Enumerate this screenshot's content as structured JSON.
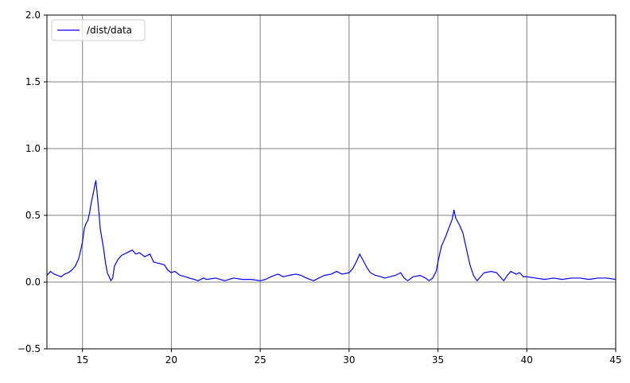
{
  "chart_data": {
    "type": "line",
    "title": "",
    "xlabel": "",
    "ylabel": "",
    "xlim": [
      13,
      45
    ],
    "ylim": [
      -0.5,
      2.0
    ],
    "xticks": [
      15,
      20,
      25,
      30,
      35,
      40,
      45
    ],
    "yticks": [
      -0.5,
      0.0,
      0.5,
      1.0,
      1.5,
      2.0
    ],
    "ytick_labels": [
      "−0.5",
      "0.0",
      "0.5",
      "1.0",
      "1.5",
      "2.0"
    ],
    "grid": true,
    "legend_position": "top-left",
    "line_color": "#0000ff",
    "grid_color": "#808080",
    "series": [
      {
        "name": "/dist/data",
        "points": [
          [
            13.0,
            0.05
          ],
          [
            13.2,
            0.08
          ],
          [
            13.4,
            0.06
          ],
          [
            13.6,
            0.05
          ],
          [
            13.8,
            0.04
          ],
          [
            14.0,
            0.06
          ],
          [
            14.2,
            0.07
          ],
          [
            14.4,
            0.09
          ],
          [
            14.6,
            0.12
          ],
          [
            14.8,
            0.18
          ],
          [
            15.0,
            0.3
          ],
          [
            15.1,
            0.4
          ],
          [
            15.2,
            0.44
          ],
          [
            15.3,
            0.46
          ],
          [
            15.4,
            0.52
          ],
          [
            15.5,
            0.6
          ],
          [
            15.6,
            0.66
          ],
          [
            15.7,
            0.73
          ],
          [
            15.75,
            0.76
          ],
          [
            15.8,
            0.7
          ],
          [
            15.9,
            0.56
          ],
          [
            16.0,
            0.4
          ],
          [
            16.1,
            0.32
          ],
          [
            16.2,
            0.24
          ],
          [
            16.3,
            0.14
          ],
          [
            16.4,
            0.07
          ],
          [
            16.5,
            0.04
          ],
          [
            16.6,
            0.01
          ],
          [
            16.7,
            0.03
          ],
          [
            16.8,
            0.12
          ],
          [
            17.0,
            0.17
          ],
          [
            17.2,
            0.2
          ],
          [
            17.5,
            0.22
          ],
          [
            17.8,
            0.24
          ],
          [
            18.0,
            0.21
          ],
          [
            18.2,
            0.22
          ],
          [
            18.5,
            0.19
          ],
          [
            18.8,
            0.21
          ],
          [
            19.0,
            0.15
          ],
          [
            19.3,
            0.14
          ],
          [
            19.6,
            0.13
          ],
          [
            19.8,
            0.09
          ],
          [
            20.0,
            0.07
          ],
          [
            20.2,
            0.08
          ],
          [
            20.5,
            0.05
          ],
          [
            20.8,
            0.04
          ],
          [
            21.0,
            0.03
          ],
          [
            21.3,
            0.02
          ],
          [
            21.5,
            0.01
          ],
          [
            21.8,
            0.03
          ],
          [
            22.0,
            0.02
          ],
          [
            22.5,
            0.03
          ],
          [
            23.0,
            0.01
          ],
          [
            23.5,
            0.03
          ],
          [
            24.0,
            0.02
          ],
          [
            24.5,
            0.02
          ],
          [
            25.0,
            0.01
          ],
          [
            25.3,
            0.02
          ],
          [
            25.6,
            0.04
          ],
          [
            26.0,
            0.06
          ],
          [
            26.3,
            0.04
          ],
          [
            26.6,
            0.05
          ],
          [
            27.0,
            0.06
          ],
          [
            27.3,
            0.05
          ],
          [
            27.6,
            0.03
          ],
          [
            28.0,
            0.01
          ],
          [
            28.3,
            0.03
          ],
          [
            28.6,
            0.05
          ],
          [
            29.0,
            0.06
          ],
          [
            29.3,
            0.08
          ],
          [
            29.6,
            0.06
          ],
          [
            30.0,
            0.07
          ],
          [
            30.2,
            0.1
          ],
          [
            30.4,
            0.15
          ],
          [
            30.6,
            0.21
          ],
          [
            30.8,
            0.16
          ],
          [
            31.0,
            0.11
          ],
          [
            31.2,
            0.07
          ],
          [
            31.5,
            0.05
          ],
          [
            31.8,
            0.04
          ],
          [
            32.0,
            0.03
          ],
          [
            32.3,
            0.04
          ],
          [
            32.6,
            0.05
          ],
          [
            32.9,
            0.07
          ],
          [
            33.1,
            0.03
          ],
          [
            33.3,
            0.01
          ],
          [
            33.6,
            0.04
          ],
          [
            34.0,
            0.05
          ],
          [
            34.3,
            0.03
          ],
          [
            34.5,
            0.01
          ],
          [
            34.7,
            0.03
          ],
          [
            34.9,
            0.08
          ],
          [
            35.0,
            0.15
          ],
          [
            35.2,
            0.27
          ],
          [
            35.4,
            0.33
          ],
          [
            35.6,
            0.4
          ],
          [
            35.8,
            0.47
          ],
          [
            35.9,
            0.54
          ],
          [
            36.0,
            0.48
          ],
          [
            36.2,
            0.43
          ],
          [
            36.4,
            0.37
          ],
          [
            36.6,
            0.25
          ],
          [
            36.8,
            0.13
          ],
          [
            37.0,
            0.05
          ],
          [
            37.2,
            0.01
          ],
          [
            37.4,
            0.04
          ],
          [
            37.6,
            0.07
          ],
          [
            38.0,
            0.08
          ],
          [
            38.3,
            0.07
          ],
          [
            38.5,
            0.04
          ],
          [
            38.7,
            0.01
          ],
          [
            38.9,
            0.05
          ],
          [
            39.1,
            0.08
          ],
          [
            39.4,
            0.06
          ],
          [
            39.6,
            0.07
          ],
          [
            39.8,
            0.04
          ],
          [
            40.0,
            0.04
          ],
          [
            40.5,
            0.03
          ],
          [
            41.0,
            0.02
          ],
          [
            41.5,
            0.03
          ],
          [
            42.0,
            0.02
          ],
          [
            42.5,
            0.03
          ],
          [
            43.0,
            0.03
          ],
          [
            43.5,
            0.02
          ],
          [
            44.0,
            0.03
          ],
          [
            44.5,
            0.03
          ],
          [
            45.0,
            0.02
          ]
        ]
      }
    ]
  }
}
